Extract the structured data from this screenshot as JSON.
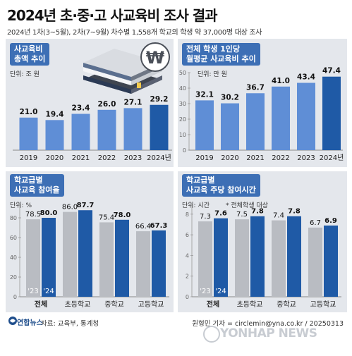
{
  "header": {
    "title": "2024년 초·중·고 사교육비 조사 결과",
    "subtitle": "2024년 1차(3~5월), 2차(7~9월) 차수별 1,558개 학교의 학생 약 37,000명 대상 조사"
  },
  "colors": {
    "bar_light": "#5f8ed6",
    "bar_dark": "#1f5aa6",
    "bar_gray": "#b9bcc2",
    "panel_bg": "#e4e7ec",
    "badge_bg": "#3d6fb5"
  },
  "panels": {
    "p1": {
      "badge_line1": "사교육비",
      "badge_line2": "총액 추이",
      "unit": "단위: 조 원"
    },
    "p2": {
      "badge_line1": "전체 학생 1인당",
      "badge_line2": "월평균 사교육비 추이",
      "unit": "단위: 만 원"
    },
    "p3": {
      "badge_line1": "학교급별",
      "badge_line2": "사교육 참여율",
      "unit": "단위: %"
    },
    "p4": {
      "badge_line1": "학교급별",
      "badge_line2": "사교육 주당 참여시간",
      "unit": "단위: 시간",
      "note": "* 전체학생 대상"
    }
  },
  "chart_data": [
    {
      "type": "bar",
      "title": "사교육비 총액 추이",
      "unit": "조 원",
      "categories": [
        "2019",
        "2020",
        "2021",
        "2022",
        "2023",
        "2024년"
      ],
      "values": [
        21.0,
        19.4,
        23.4,
        26.0,
        27.1,
        29.2
      ],
      "value_labels": [
        "21.0",
        "19.4",
        "23.4",
        "26.0",
        "27.1",
        "29.2"
      ],
      "highlight_last": true
    },
    {
      "type": "bar",
      "title": "전체 학생 1인당 월평균 사교육비 추이",
      "unit": "만 원",
      "categories": [
        "2019",
        "2020",
        "2021",
        "2022",
        "2023",
        "2024년"
      ],
      "values": [
        32.1,
        30.2,
        36.7,
        41.0,
        43.4,
        47.4
      ],
      "value_labels": [
        "32.1",
        "30.2",
        "36.7",
        "41.0",
        "43.4",
        "47.4"
      ],
      "ylim": [
        0,
        50
      ],
      "yticks": [
        "0",
        "10",
        "20",
        "30",
        "40",
        "50"
      ],
      "highlight_last": true
    },
    {
      "type": "bar",
      "title": "학교급별 사교육 참여율",
      "unit": "%",
      "categories": [
        "전체",
        "초등학교",
        "중학교",
        "고등학교"
      ],
      "series": [
        {
          "name": "'23",
          "values": [
            78.5,
            86.0,
            75.4,
            66.4
          ],
          "labels": [
            "78.5",
            "86.0",
            "75.4",
            "66.4"
          ]
        },
        {
          "name": "'24",
          "values": [
            80.0,
            87.7,
            78.0,
            67.3
          ],
          "labels": [
            "80.0",
            "87.7",
            "78.0",
            "67.3"
          ]
        }
      ],
      "ylim": [
        0,
        90
      ],
      "yticks": [
        "0",
        "20",
        "40",
        "60",
        "80"
      ]
    },
    {
      "type": "bar",
      "title": "학교급별 사교육 주당 참여시간",
      "unit": "시간",
      "categories": [
        "전체",
        "초등학교",
        "중학교",
        "고등학교"
      ],
      "series": [
        {
          "name": "'23",
          "values": [
            7.3,
            7.5,
            7.4,
            6.7
          ],
          "labels": [
            "7.3",
            "7.5",
            "7.4",
            "6.7"
          ]
        },
        {
          "name": "'24",
          "values": [
            7.6,
            7.8,
            7.8,
            6.9
          ],
          "labels": [
            "7.6",
            "7.8",
            "7.8",
            "6.9"
          ]
        }
      ],
      "ylim": [
        0,
        8.6
      ],
      "yticks": [
        "0",
        "2",
        "4",
        "6",
        "8"
      ]
    }
  ],
  "footer": {
    "logo": "연합뉴스",
    "source": "자료: 교육부, 통계청",
    "credit": "원형민 기자 = circlemin@yna.co.kr / 20250313",
    "watermark": "YONHAP NEWS"
  },
  "illustration": {
    "currency_symbol": "₩"
  }
}
